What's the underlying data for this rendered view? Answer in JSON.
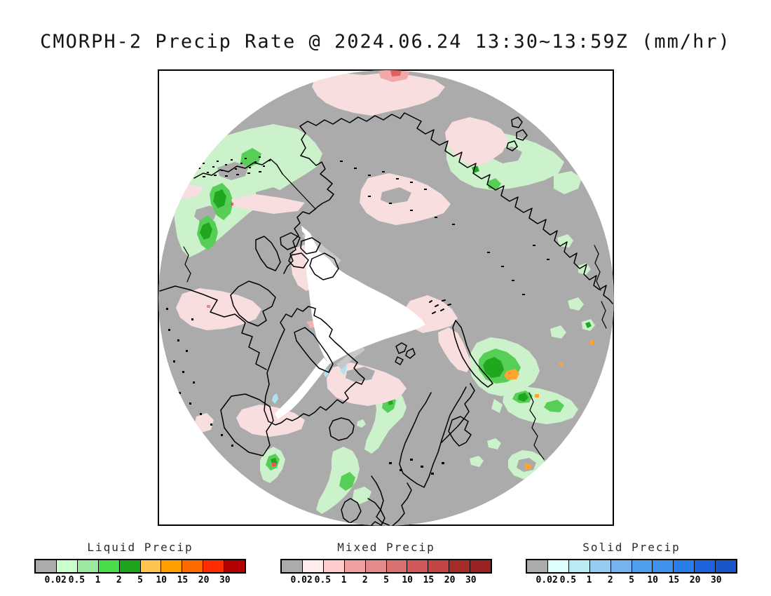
{
  "title": "CMORPH-2 Precip Rate @ 2024.06.24 13:30~13:59Z (mm/hr)",
  "map": {
    "no_precip_color": "#ABABAB",
    "no_data_color": "#FFFFFF",
    "coastline_color": "#000000",
    "frame_color": "#000000",
    "light_rain_color": "#CBF2CB",
    "moderate_rain_color": "#57CE57",
    "heavy_rain_color": "#1FA81F",
    "very_heavy_rain_color": "#FFA52E",
    "mixed_light_color": "#F8DEDE",
    "mixed_heavy_color": "#E06060",
    "solid_light_color": "#AEE2F2"
  },
  "colorbars": {
    "tick_labels": [
      "0.02",
      "0.5",
      "1",
      "2",
      "5",
      "10",
      "15",
      "20",
      "30"
    ],
    "bars": [
      {
        "label": "Liquid Precip",
        "colors": [
          "#ABABAB",
          "#CCFFCC",
          "#9FE89F",
          "#4ADB4A",
          "#1EA41E",
          "#FFC44E",
          "#FFA000",
          "#FF6A00",
          "#FF2C00",
          "#B40000"
        ]
      },
      {
        "label": "Mixed Precip",
        "colors": [
          "#ABABAB",
          "#FFEDED",
          "#FFCCCC",
          "#F0A0A0",
          "#E38A8A",
          "#D97070",
          "#D05858",
          "#C54545",
          "#A62B2B",
          "#9B2222"
        ]
      },
      {
        "label": "Solid Precip",
        "colors": [
          "#ABABAB",
          "#E0FFFF",
          "#B8ECF2",
          "#97CBF2",
          "#75B2F0",
          "#4F9FEF",
          "#3E92EE",
          "#2B7EE8",
          "#1F63DF",
          "#1856C9"
        ]
      }
    ]
  }
}
